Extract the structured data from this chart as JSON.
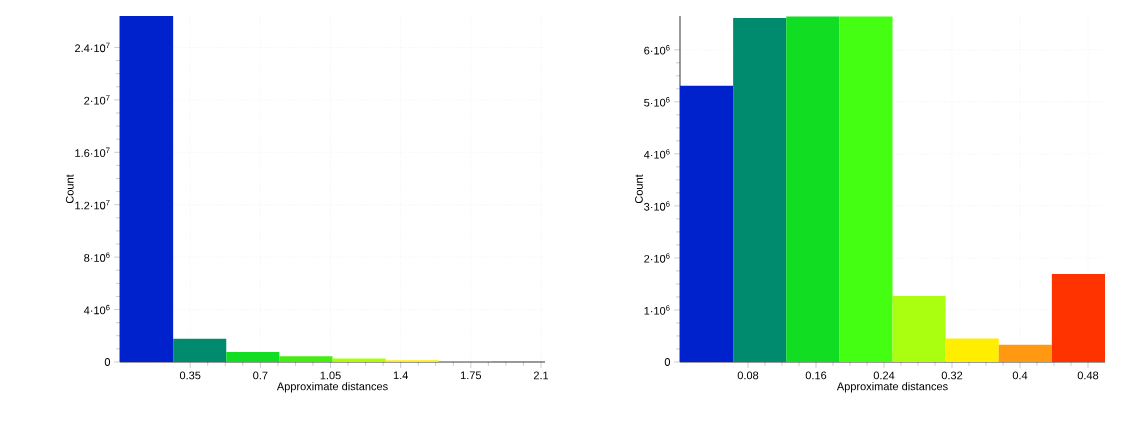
{
  "chart_data": [
    {
      "type": "histogram",
      "xlabel": "Approximate distances",
      "ylabel": "Count",
      "bins": [
        0,
        0.265,
        0.53,
        0.795,
        1.06,
        1.325,
        1.59,
        1.855,
        2.12
      ],
      "values": [
        26400000,
        1770000,
        760000,
        440000,
        270000,
        140000,
        50000,
        null
      ],
      "colors": [
        "#0022cc",
        "#008a6e",
        "#11dd22",
        "#44ee11",
        "#aaff00",
        "#ffee00",
        "#ff9900",
        "#ff3300"
      ],
      "xlim": [
        0,
        2.12
      ],
      "ylim": [
        0,
        26400000
      ],
      "xticks": [
        0.35,
        0.7,
        1.05,
        1.4,
        1.75,
        2.1
      ],
      "yticks": [
        {
          "value": 0,
          "label": "0"
        },
        {
          "value": 4000000,
          "label": "4·10$^{6}$"
        },
        {
          "value": 8000000,
          "label": "8·10$^{6}$"
        },
        {
          "value": 12000000,
          "label": "1.2·10$^{7}$"
        },
        {
          "value": 16000000,
          "label": "1.6·10$^{7}$"
        },
        {
          "value": 20000000,
          "label": "2·10$^{7}$"
        },
        {
          "value": 24000000,
          "label": "2.4·10$^{7}$"
        }
      ],
      "grid": true
    },
    {
      "type": "histogram",
      "xlabel": "Approximate distances",
      "ylabel": "Count",
      "bins": [
        0,
        0.0625,
        0.125,
        0.1875,
        0.25,
        0.3125,
        0.375,
        0.4375,
        0.5
      ],
      "values": [
        5310000,
        6610000,
        6640000,
        6640000,
        1270000,
        450000,
        330000,
        1690000
      ],
      "colors": [
        "#0022cc",
        "#008a6e",
        "#11dd22",
        "#44ff11",
        "#aaff11",
        "#ffee00",
        "#ff9911",
        "#ff3300"
      ],
      "xlim": [
        0,
        0.5
      ],
      "ylim": [
        0,
        6650000
      ],
      "xticks": [
        0.08,
        0.16,
        0.24,
        0.32,
        0.4,
        0.48
      ],
      "yticks": [
        {
          "value": 0,
          "label": "0"
        },
        {
          "value": 1000000,
          "label": "1·10$^{6}$"
        },
        {
          "value": 2000000,
          "label": "2·10$^{6}$"
        },
        {
          "value": 3000000,
          "label": "3·10$^{6}$"
        },
        {
          "value": 4000000,
          "label": "4·10$^{6}$"
        },
        {
          "value": 5000000,
          "label": "5·10$^{6}$"
        },
        {
          "value": 6000000,
          "label": "6·10$^{6}$"
        }
      ],
      "grid": true
    }
  ]
}
